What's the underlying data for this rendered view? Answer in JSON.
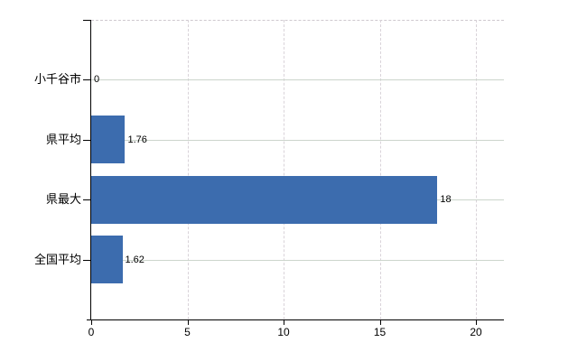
{
  "chart_data": {
    "type": "bar",
    "orientation": "horizontal",
    "title": "",
    "xlabel": "",
    "ylabel": "",
    "categories": [
      "小千谷市",
      "県平均",
      "県最大",
      "全国平均"
    ],
    "values": [
      0,
      1.76,
      18,
      1.62
    ],
    "value_labels": [
      "0",
      "1.76",
      "18",
      "1.62"
    ],
    "x_ticks": [
      0,
      5,
      10,
      15,
      20
    ],
    "x_tick_labels": [
      "0",
      "5",
      "10",
      "15",
      "20"
    ],
    "xlim": [
      0,
      21.5
    ],
    "grid": true,
    "legend": "none",
    "bar_color": "#3c6cae",
    "gridline_h_color": "#ccd5cc",
    "gridline_v_color": "#d9d3d9",
    "axis_color": "#000000",
    "background_color": "#ffffff"
  }
}
